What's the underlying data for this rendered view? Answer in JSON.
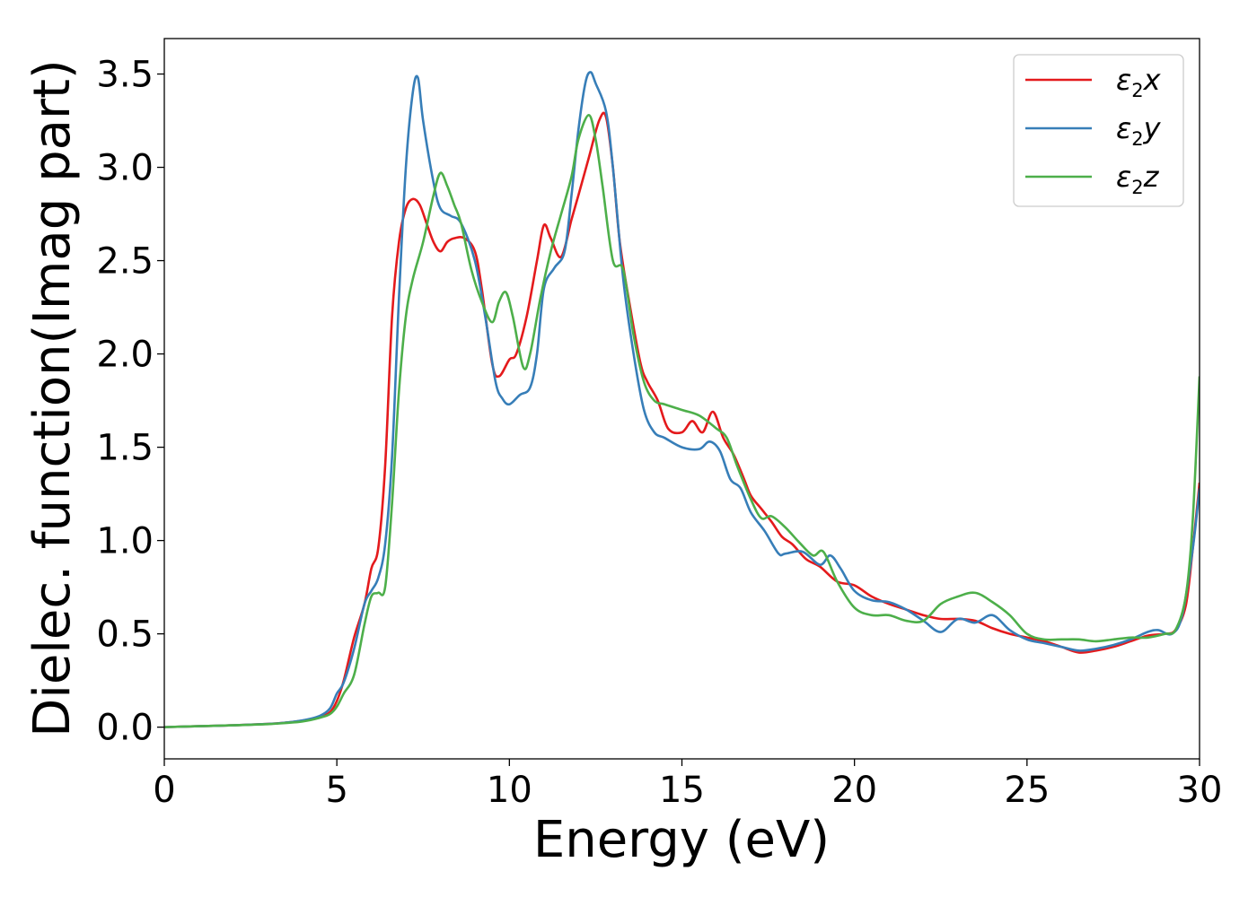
{
  "chart_data": {
    "type": "line",
    "xlabel": "Energy (eV)",
    "ylabel": "Dielec. function(Imag part)",
    "xlim": [
      0,
      30
    ],
    "ylim": [
      -0.17,
      3.69
    ],
    "xticks": [
      "0",
      "5",
      "10",
      "15",
      "20",
      "25",
      "30"
    ],
    "yticks": [
      "0.0",
      "0.5",
      "1.0",
      "1.5",
      "2.0",
      "2.5",
      "3.0",
      "3.5"
    ],
    "grid": false,
    "legend_position": "top-right",
    "series": [
      {
        "name": "ε2x",
        "legend": {
          "base": "ε",
          "sub": "2",
          "var": "x"
        },
        "color": "#e41a1c",
        "x": [
          0,
          1,
          2,
          3,
          3.5,
          4,
          4.5,
          4.8,
          5,
          5.2,
          5.5,
          5.8,
          6,
          6.2,
          6.4,
          6.6,
          6.8,
          7,
          7.2,
          7.4,
          7.6,
          7.8,
          8,
          8.2,
          8.4,
          8.7,
          9,
          9.2,
          9.5,
          9.7,
          10,
          10.2,
          10.5,
          10.8,
          11,
          11.2,
          11.5,
          11.8,
          12,
          12.3,
          12.6,
          12.8,
          13,
          13.2,
          13.5,
          13.8,
          14,
          14.3,
          14.6,
          15,
          15.3,
          15.6,
          15.9,
          16.2,
          16.5,
          16.8,
          17,
          17.3,
          17.6,
          17.9,
          18.2,
          18.6,
          19,
          19.5,
          20,
          20.5,
          21,
          21.5,
          22,
          22.5,
          23,
          23.5,
          24,
          24.5,
          25,
          25.5,
          26,
          26.5,
          27,
          27.5,
          28,
          28.5,
          29,
          29.3,
          29.6,
          29.8,
          30
        ],
        "y": [
          0.0,
          0.005,
          0.01,
          0.017,
          0.024,
          0.035,
          0.055,
          0.08,
          0.14,
          0.25,
          0.48,
          0.66,
          0.85,
          0.96,
          1.4,
          2.2,
          2.6,
          2.78,
          2.83,
          2.8,
          2.7,
          2.6,
          2.55,
          2.6,
          2.62,
          2.62,
          2.55,
          2.35,
          1.95,
          1.88,
          1.97,
          2.0,
          2.2,
          2.5,
          2.69,
          2.62,
          2.52,
          2.72,
          2.85,
          3.05,
          3.25,
          3.27,
          3.0,
          2.6,
          2.25,
          1.95,
          1.85,
          1.75,
          1.6,
          1.58,
          1.64,
          1.58,
          1.69,
          1.55,
          1.46,
          1.33,
          1.24,
          1.17,
          1.1,
          1.02,
          0.98,
          0.9,
          0.86,
          0.78,
          0.76,
          0.7,
          0.66,
          0.63,
          0.6,
          0.58,
          0.58,
          0.57,
          0.53,
          0.5,
          0.48,
          0.46,
          0.43,
          0.4,
          0.41,
          0.43,
          0.46,
          0.49,
          0.5,
          0.52,
          0.65,
          0.95,
          1.31
        ]
      },
      {
        "name": "ε2y",
        "legend": {
          "base": "ε",
          "sub": "2",
          "var": "y"
        },
        "color": "#377eb8",
        "x": [
          0,
          1,
          2,
          3,
          3.5,
          4,
          4.5,
          4.8,
          5,
          5.2,
          5.5,
          5.8,
          6,
          6.2,
          6.4,
          6.6,
          6.8,
          7,
          7.2,
          7.35,
          7.5,
          7.8,
          8,
          8.3,
          8.6,
          9,
          9.3,
          9.6,
          9.8,
          10,
          10.3,
          10.6,
          10.8,
          11,
          11.3,
          11.6,
          11.8,
          12,
          12.2,
          12.35,
          12.5,
          12.8,
          13,
          13.3,
          13.6,
          13.9,
          14.2,
          14.5,
          15,
          15.5,
          15.8,
          16.1,
          16.4,
          16.7,
          17,
          17.4,
          17.8,
          18,
          18.5,
          19,
          19.3,
          19.6,
          20,
          20.5,
          21,
          21.5,
          22,
          22.5,
          23,
          23.5,
          24,
          24.5,
          25,
          25.5,
          26,
          26.5,
          27,
          27.5,
          28,
          28.5,
          28.8,
          29.2,
          29.5,
          29.8,
          30
        ],
        "y": [
          0.0,
          0.005,
          0.01,
          0.017,
          0.024,
          0.036,
          0.06,
          0.1,
          0.18,
          0.24,
          0.42,
          0.66,
          0.73,
          0.8,
          0.98,
          1.45,
          2.3,
          3.0,
          3.4,
          3.48,
          3.25,
          2.92,
          2.78,
          2.74,
          2.7,
          2.5,
          2.2,
          1.85,
          1.76,
          1.73,
          1.78,
          1.82,
          2.0,
          2.35,
          2.46,
          2.55,
          2.85,
          3.2,
          3.45,
          3.51,
          3.45,
          3.3,
          3.0,
          2.4,
          2.0,
          1.7,
          1.58,
          1.55,
          1.5,
          1.49,
          1.53,
          1.48,
          1.33,
          1.28,
          1.15,
          1.05,
          0.93,
          0.93,
          0.94,
          0.87,
          0.92,
          0.85,
          0.73,
          0.68,
          0.67,
          0.63,
          0.57,
          0.51,
          0.58,
          0.56,
          0.6,
          0.52,
          0.47,
          0.45,
          0.43,
          0.41,
          0.42,
          0.44,
          0.47,
          0.51,
          0.52,
          0.5,
          0.6,
          0.95,
          1.28
        ]
      },
      {
        "name": "ε2z",
        "legend": {
          "base": "ε",
          "sub": "2",
          "var": "z"
        },
        "color": "#4daf4a",
        "x": [
          0,
          1,
          2,
          3,
          3.5,
          4,
          4.5,
          4.8,
          5,
          5.2,
          5.5,
          5.8,
          6,
          6.2,
          6.4,
          6.6,
          6.8,
          7,
          7.2,
          7.5,
          7.8,
          8,
          8.2,
          8.4,
          8.6,
          8.9,
          9.2,
          9.5,
          9.7,
          9.9,
          10.1,
          10.4,
          10.6,
          10.9,
          11.2,
          11.5,
          11.8,
          12.0,
          12.3,
          12.5,
          12.7,
          13,
          13.3,
          13.6,
          13.9,
          14.2,
          14.5,
          15,
          15.5,
          16,
          16.3,
          16.6,
          17,
          17.3,
          17.6,
          18,
          18.4,
          18.8,
          19.1,
          19.5,
          20,
          20.5,
          21,
          21.5,
          22,
          22.5,
          23,
          23.5,
          24,
          24.5,
          25,
          25.5,
          26,
          26.5,
          27,
          27.5,
          28,
          28.5,
          29,
          29.3,
          29.6,
          29.8,
          30
        ],
        "y": [
          0.0,
          0.005,
          0.01,
          0.016,
          0.022,
          0.03,
          0.05,
          0.07,
          0.11,
          0.18,
          0.28,
          0.55,
          0.7,
          0.72,
          0.75,
          1.2,
          1.8,
          2.2,
          2.4,
          2.6,
          2.85,
          2.97,
          2.9,
          2.8,
          2.7,
          2.45,
          2.28,
          2.17,
          2.28,
          2.33,
          2.2,
          1.93,
          2.0,
          2.3,
          2.55,
          2.75,
          2.95,
          3.15,
          3.28,
          3.15,
          2.9,
          2.5,
          2.45,
          2.1,
          1.85,
          1.75,
          1.73,
          1.7,
          1.67,
          1.6,
          1.55,
          1.4,
          1.22,
          1.12,
          1.13,
          1.07,
          0.99,
          0.92,
          0.94,
          0.78,
          0.64,
          0.6,
          0.6,
          0.57,
          0.57,
          0.66,
          0.7,
          0.72,
          0.67,
          0.6,
          0.5,
          0.47,
          0.47,
          0.47,
          0.46,
          0.47,
          0.48,
          0.48,
          0.5,
          0.52,
          0.7,
          1.1,
          1.88
        ]
      }
    ]
  }
}
